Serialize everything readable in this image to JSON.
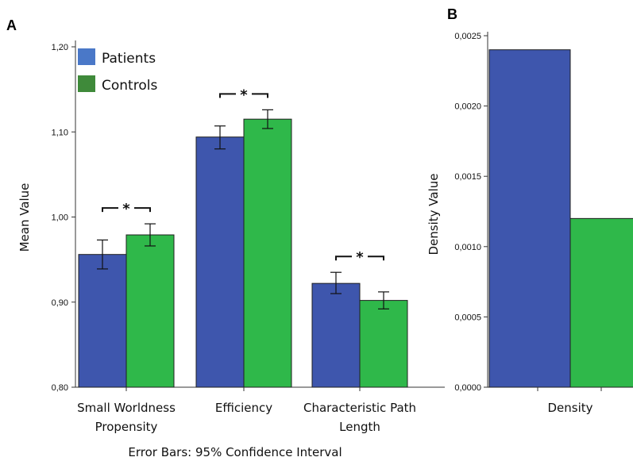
{
  "chart_data": [
    {
      "panel": "A",
      "type": "bar",
      "ylabel": "Mean Value",
      "ylim": [
        0.8,
        1.2
      ],
      "yticks": [
        "0,80",
        "0,90",
        "1,00",
        "1,10",
        "1,20"
      ],
      "categories": [
        [
          "Small Worldness",
          "Propensity"
        ],
        [
          "Efficiency"
        ],
        [
          "Characteristic Path",
          "Length"
        ]
      ],
      "series": [
        {
          "name": "Patients",
          "color": "#3e56ad",
          "values": [
            0.956,
            1.094,
            0.922
          ],
          "ci_low": [
            0.939,
            1.08,
            0.91
          ],
          "ci_high": [
            0.973,
            1.107,
            0.935
          ]
        },
        {
          "name": "Controls",
          "color": "#2fb84a",
          "values": [
            0.979,
            1.115,
            0.902
          ],
          "ci_low": [
            0.966,
            1.104,
            0.892
          ],
          "ci_high": [
            0.992,
            1.126,
            0.912
          ]
        }
      ],
      "legend": {
        "position": "top-left",
        "swatch_colors": [
          "#4a78c8",
          "#3f8a3a"
        ]
      },
      "significance": [
        "*",
        "*",
        "*"
      ],
      "note": "Error Bars: 95% Confidence Interval"
    },
    {
      "panel": "B",
      "type": "bar",
      "ylabel": "Density Value",
      "ylim": [
        0,
        0.0025
      ],
      "yticks": [
        "0,0000",
        "0,0005",
        "0,0010",
        "0,0015",
        "0,0020",
        "0,0025"
      ],
      "categories": [
        "Density"
      ],
      "series": [
        {
          "name": "Patients",
          "color": "#3e56ad",
          "values": [
            0.0024
          ]
        },
        {
          "name": "Controls",
          "color": "#2fb84a",
          "values": [
            0.0012
          ]
        }
      ]
    }
  ]
}
